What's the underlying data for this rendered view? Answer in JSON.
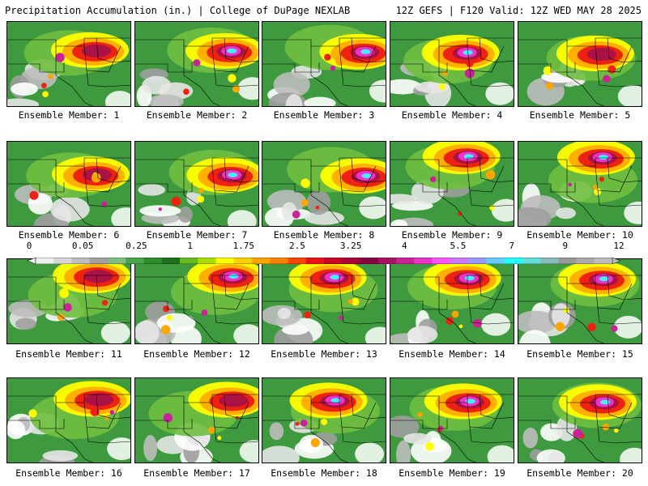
{
  "header": {
    "left_title": "Precipitation Accumulation (in.) | College of DuPage NEXLAB",
    "right_title": "12Z GEFS | F120 Valid: 12Z WED MAY 28 2025"
  },
  "members": [
    {
      "label": "Ensemble Member: 1"
    },
    {
      "label": "Ensemble Member: 2"
    },
    {
      "label": "Ensemble Member: 3"
    },
    {
      "label": "Ensemble Member: 4"
    },
    {
      "label": "Ensemble Member: 5"
    },
    {
      "label": "Ensemble Member: 6"
    },
    {
      "label": "Ensemble Member: 7"
    },
    {
      "label": "Ensemble Member: 8"
    },
    {
      "label": "Ensemble Member: 9"
    },
    {
      "label": "Ensemble Member: 10"
    },
    {
      "label": "Ensemble Member: 11"
    },
    {
      "label": "Ensemble Member: 12"
    },
    {
      "label": "Ensemble Member: 13"
    },
    {
      "label": "Ensemble Member: 14"
    },
    {
      "label": "Ensemble Member: 15"
    },
    {
      "label": "Ensemble Member: 16"
    },
    {
      "label": "Ensemble Member: 17"
    },
    {
      "label": "Ensemble Member: 18"
    },
    {
      "label": "Ensemble Member: 19"
    },
    {
      "label": "Ensemble Member: 20"
    }
  ],
  "scale": {
    "labels": [
      "0",
      "0.05",
      "0.25",
      "1",
      "1.75",
      "2.5",
      "3.25",
      "4",
      "5.5",
      "7",
      "9",
      "12"
    ],
    "colors": [
      "#eeeeee",
      "#d6d6d6",
      "#bdbdbd",
      "#a0a0a0",
      "#7fbf7f",
      "#4aa64a",
      "#2e8b2e",
      "#1e6e1e",
      "#66bb22",
      "#aadd00",
      "#ffff00",
      "#ffd000",
      "#ffa500",
      "#ff7f00",
      "#ff4500",
      "#ee1111",
      "#cc0022",
      "#aa0033",
      "#880044",
      "#aa1166",
      "#cc2299",
      "#ee33cc",
      "#ff55ff",
      "#cc77ff",
      "#9999ff",
      "#66ccff",
      "#22ffff",
      "#66dddd",
      "#88bbbb",
      "#999999",
      "#aaaaaa",
      "#bbbbbb"
    ]
  }
}
